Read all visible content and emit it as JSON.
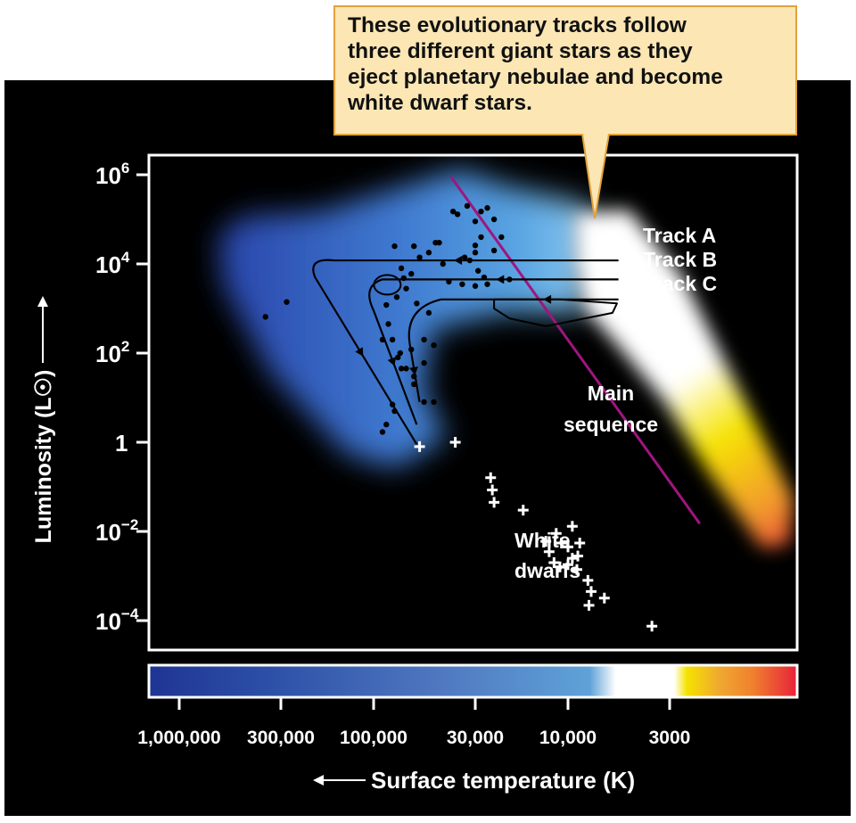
{
  "callout": {
    "lines": [
      "These evolutionary tracks follow",
      "three different giant stars as they",
      "eject planetary nebulae and become",
      "white dwarf stars."
    ]
  },
  "chart_data": {
    "type": "scatter",
    "title": "",
    "xlabel": "Surface temperature (K)",
    "ylabel": "Luminosity (L☉)",
    "xscale": "log-reversed",
    "yscale": "log",
    "x_ticks": [
      {
        "value": 1000000,
        "label": "1,000,000"
      },
      {
        "value": 300000,
        "label": "300,000"
      },
      {
        "value": 100000,
        "label": "100,000"
      },
      {
        "value": 30000,
        "label": "30,000"
      },
      {
        "value": 10000,
        "label": "10,000"
      },
      {
        "value": 3000,
        "label": "3000"
      }
    ],
    "y_ticks": [
      {
        "exp": 6,
        "base": "10",
        "sup": "6"
      },
      {
        "exp": 4,
        "base": "10",
        "sup": "4"
      },
      {
        "exp": 2,
        "base": "10",
        "sup": "2"
      },
      {
        "exp": 0,
        "base": "1",
        "sup": ""
      },
      {
        "exp": -2,
        "base": "10",
        "sup": "−2"
      },
      {
        "exp": -4,
        "base": "10",
        "sup": "−4"
      }
    ],
    "labels": {
      "track_a": "Track A",
      "track_b": "Track B",
      "track_c": "Track C",
      "main_sequence": [
        "Main",
        "sequence"
      ],
      "white_dwarfs": [
        "White",
        "dwarfs"
      ]
    },
    "colors": {
      "background": "#000000",
      "axes_frame": "#ffffff",
      "main_sequence_line": "#a0157f",
      "tracks": "#000000",
      "dots": "#000000",
      "white_dwarf_markers": "#ffffff"
    },
    "temperature_colorbar": [
      "#1f3494",
      "#2e52a8",
      "#4f78c0",
      "#5fa2d8",
      "#ffffff",
      "#f5e200",
      "#f0a830",
      "#f0822e",
      "#e8213a"
    ],
    "main_sequence": [
      [
        40000,
        900000
      ],
      [
        2100,
        0.015
      ]
    ],
    "tracks": [
      {
        "name": "Track A",
        "points": [
          [
            5500,
            12000
          ],
          [
            160000,
            12000
          ],
          [
            220000,
            14000
          ],
          [
            200000,
            5000
          ],
          [
            60000,
            0.9
          ]
        ]
      },
      {
        "name": "Track B",
        "points": [
          [
            5500,
            4500
          ],
          [
            90000,
            4500
          ],
          [
            115000,
            3200
          ],
          [
            100000,
            900
          ],
          [
            60000,
            2.5
          ]
        ]
      },
      {
        "name": "Track C",
        "points": [
          [
            5500,
            1600
          ],
          [
            45000,
            1600
          ],
          [
            70000,
            1000
          ],
          [
            65000,
            150
          ],
          [
            58000,
            8
          ]
        ]
      }
    ],
    "track_c_loop": [
      [
        24000,
        1600
      ],
      [
        11000,
        1600
      ],
      [
        5600,
        1300
      ],
      [
        5900,
        800
      ],
      [
        13000,
        400
      ],
      [
        20000,
        600
      ],
      [
        24000,
        1000
      ]
    ],
    "track_b_loop_center": [
      85000,
      3400
    ],
    "planetary_nebula_nuclei": [
      [
        78000,
        25000
      ],
      [
        62000,
        25000
      ],
      [
        48000,
        30000
      ],
      [
        46000,
        30000
      ],
      [
        52000,
        18000
      ],
      [
        44000,
        10000
      ],
      [
        58000,
        14000
      ],
      [
        70000,
        4800
      ],
      [
        72000,
        8000
      ],
      [
        64000,
        6000
      ],
      [
        68000,
        2800
      ],
      [
        86000,
        1200
      ],
      [
        76000,
        1800
      ],
      [
        60000,
        1300
      ],
      [
        52000,
        800
      ],
      [
        55000,
        200
      ],
      [
        49000,
        150
      ],
      [
        64000,
        120
      ],
      [
        73000,
        100
      ],
      [
        80000,
        200
      ],
      [
        84000,
        450
      ],
      [
        90000,
        200
      ],
      [
        68000,
        45
      ],
      [
        62000,
        30
      ],
      [
        75000,
        80
      ],
      [
        55000,
        8
      ],
      [
        55000,
        60
      ],
      [
        72000,
        45
      ],
      [
        49000,
        8
      ],
      [
        62000,
        20
      ],
      [
        78000,
        5
      ],
      [
        80000,
        7
      ],
      [
        90000,
        1.7
      ],
      [
        86000,
        2.5
      ],
      [
        34000,
        14000
      ],
      [
        30000,
        18000
      ],
      [
        30000,
        26000
      ],
      [
        32000,
        12000
      ],
      [
        29000,
        7000
      ],
      [
        27000,
        5000
      ],
      [
        26000,
        3500
      ],
      [
        30000,
        3200
      ],
      [
        35000,
        3500
      ],
      [
        28000,
        40000
      ],
      [
        33000,
        200000
      ],
      [
        28000,
        150000
      ],
      [
        20000,
        4500
      ],
      [
        24000,
        20000
      ],
      [
        22000,
        40000
      ],
      [
        24000,
        100000
      ],
      [
        30000,
        90000
      ],
      [
        26000,
        180000
      ],
      [
        39000,
        150000
      ],
      [
        37000,
        130000
      ],
      [
        41000,
        4000
      ],
      [
        360000,
        650
      ],
      [
        280000,
        1400
      ],
      [
        28500,
        100
      ]
    ],
    "white_dwarfs": [
      [
        58000,
        0.8
      ],
      [
        38000,
        1.0
      ],
      [
        25000,
        0.16
      ],
      [
        24500,
        0.085
      ],
      [
        24000,
        0.045
      ],
      [
        17000,
        0.03
      ],
      [
        13000,
        0.006
      ],
      [
        11500,
        0.009
      ],
      [
        12500,
        0.0035
      ],
      [
        10800,
        0.0055
      ],
      [
        10000,
        0.0045
      ],
      [
        9500,
        0.013
      ],
      [
        8700,
        0.0055
      ],
      [
        8900,
        0.0028
      ],
      [
        11000,
        0.0016
      ],
      [
        9500,
        0.0025
      ],
      [
        10000,
        0.0018
      ],
      [
        9000,
        0.0014
      ],
      [
        11800,
        0.002
      ],
      [
        7900,
        0.0008
      ],
      [
        7600,
        0.00045
      ],
      [
        7800,
        0.00022
      ],
      [
        6500,
        0.00032
      ],
      [
        3700,
        7.5e-05
      ]
    ]
  }
}
